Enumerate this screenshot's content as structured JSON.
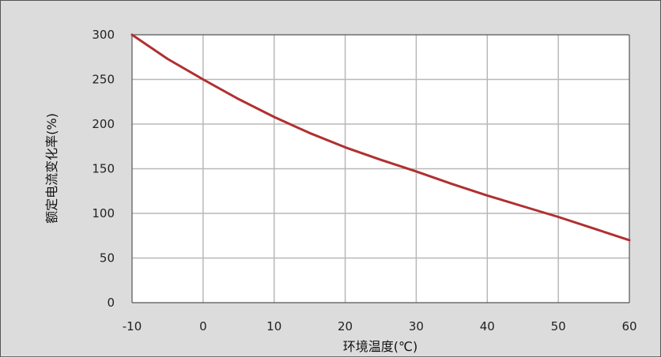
{
  "chart_data": {
    "type": "line",
    "title": "",
    "xlabel": "环境温度(℃)",
    "ylabel": "额定电流变化率(%)",
    "xlim": [
      -10,
      60
    ],
    "ylim": [
      0,
      300
    ],
    "xticks": [
      -10,
      0,
      10,
      20,
      30,
      40,
      50,
      60
    ],
    "yticks": [
      0,
      50,
      100,
      150,
      200,
      250,
      300
    ],
    "xtick_labels": [
      "-10",
      "0",
      "10",
      "20",
      "30",
      "40",
      "50",
      "60"
    ],
    "ytick_labels": [
      "0",
      "50",
      "100",
      "150",
      "200",
      "250",
      "300"
    ],
    "grid": true,
    "legend": "none",
    "series": [
      {
        "color": "#b03030",
        "x": [
          -10,
          -5,
          0,
          5,
          10,
          15,
          20,
          25,
          30,
          35,
          40,
          45,
          50,
          55,
          60
        ],
        "y": [
          300,
          273,
          250,
          228,
          208,
          190,
          174,
          160,
          147,
          133,
          120,
          108,
          96,
          83,
          70
        ]
      }
    ],
    "colors": {
      "frame_bg": "#dcdcdc",
      "plot_bg": "#ffffff",
      "grid": "#b8b8b8",
      "line": "#b03030"
    }
  }
}
